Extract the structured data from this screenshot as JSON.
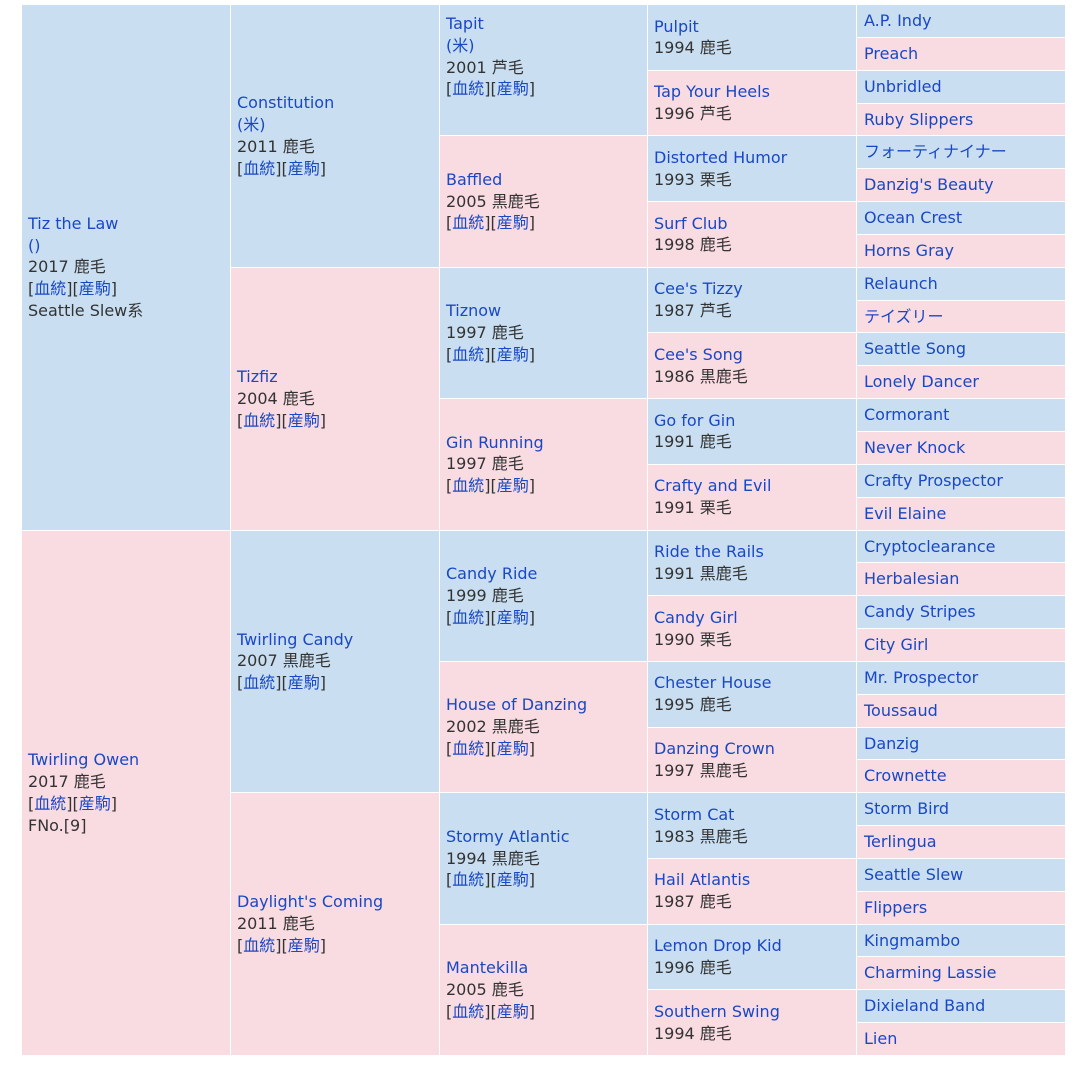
{
  "pedigree": {
    "colors": {
      "male_bg": "#c9dff1",
      "female_bg": "#f9dbe2",
      "link": "#1a48c4",
      "text": "#333333"
    },
    "link_labels": {
      "pedigree": "血統",
      "progeny": "産駒"
    },
    "gen1": [
      {
        "name": "Tiz the Law",
        "line2": "()",
        "info": "2017 鹿毛",
        "extra": "Seattle Slew系"
      },
      {
        "name": "Twirling Owen",
        "info": "2017 鹿毛",
        "extra": "FNo.[9]"
      }
    ],
    "gen2": [
      {
        "name": "Constitution",
        "line2": "(米)",
        "info": "2011 鹿毛"
      },
      {
        "name": "Tizfiz",
        "info": "2004 鹿毛"
      },
      {
        "name": "Twirling Candy",
        "info": "2007 黒鹿毛"
      },
      {
        "name": "Daylight's Coming",
        "info": "2011 鹿毛"
      }
    ],
    "gen3": [
      {
        "name": "Tapit",
        "line2": "(米)",
        "info": "2001 芦毛"
      },
      {
        "name": "Baffled",
        "info": "2005 黒鹿毛"
      },
      {
        "name": "Tiznow",
        "info": "1997 鹿毛"
      },
      {
        "name": "Gin Running",
        "info": "1997 鹿毛"
      },
      {
        "name": "Candy Ride",
        "info": "1999 鹿毛"
      },
      {
        "name": "House of Danzing",
        "info": "2002 黒鹿毛"
      },
      {
        "name": "Stormy Atlantic",
        "info": "1994 黒鹿毛"
      },
      {
        "name": "Mantekilla",
        "info": "2005 鹿毛"
      }
    ],
    "gen4": [
      {
        "name": "Pulpit",
        "info": "1994 鹿毛"
      },
      {
        "name": "Tap Your Heels",
        "info": "1996 芦毛"
      },
      {
        "name": "Distorted Humor",
        "info": "1993 栗毛"
      },
      {
        "name": "Surf Club",
        "info": "1998 鹿毛"
      },
      {
        "name": "Cee's Tizzy",
        "info": "1987 芦毛"
      },
      {
        "name": "Cee's Song",
        "info": "1986 黒鹿毛"
      },
      {
        "name": "Go for Gin",
        "info": "1991 鹿毛"
      },
      {
        "name": "Crafty and Evil",
        "info": "1991 栗毛"
      },
      {
        "name": "Ride the Rails",
        "info": "1991 黒鹿毛"
      },
      {
        "name": "Candy Girl",
        "info": "1990 栗毛"
      },
      {
        "name": "Chester House",
        "info": "1995 鹿毛"
      },
      {
        "name": "Danzing Crown",
        "info": "1997 黒鹿毛"
      },
      {
        "name": "Storm Cat",
        "info": "1983 黒鹿毛"
      },
      {
        "name": "Hail Atlantis",
        "info": "1987 鹿毛"
      },
      {
        "name": "Lemon Drop Kid",
        "info": "1996 鹿毛"
      },
      {
        "name": "Southern Swing",
        "info": "1994 鹿毛"
      }
    ],
    "gen5": [
      {
        "name": "A.P. Indy"
      },
      {
        "name": "Preach"
      },
      {
        "name": "Unbridled"
      },
      {
        "name": "Ruby Slippers"
      },
      {
        "name": "フォーティナイナー"
      },
      {
        "name": "Danzig's Beauty"
      },
      {
        "name": "Ocean Crest"
      },
      {
        "name": "Horns Gray"
      },
      {
        "name": "Relaunch"
      },
      {
        "name": "テイズリー"
      },
      {
        "name": "Seattle Song"
      },
      {
        "name": "Lonely Dancer"
      },
      {
        "name": "Cormorant"
      },
      {
        "name": "Never Knock"
      },
      {
        "name": "Crafty Prospector"
      },
      {
        "name": "Evil Elaine"
      },
      {
        "name": "Cryptoclearance"
      },
      {
        "name": "Herbalesian"
      },
      {
        "name": "Candy Stripes"
      },
      {
        "name": "City Girl"
      },
      {
        "name": "Mr. Prospector"
      },
      {
        "name": "Toussaud"
      },
      {
        "name": "Danzig"
      },
      {
        "name": "Crownette"
      },
      {
        "name": "Storm Bird"
      },
      {
        "name": "Terlingua"
      },
      {
        "name": "Seattle Slew"
      },
      {
        "name": "Flippers"
      },
      {
        "name": "Kingmambo"
      },
      {
        "name": "Charming Lassie"
      },
      {
        "name": "Dixieland Band"
      },
      {
        "name": "Lien"
      }
    ]
  }
}
